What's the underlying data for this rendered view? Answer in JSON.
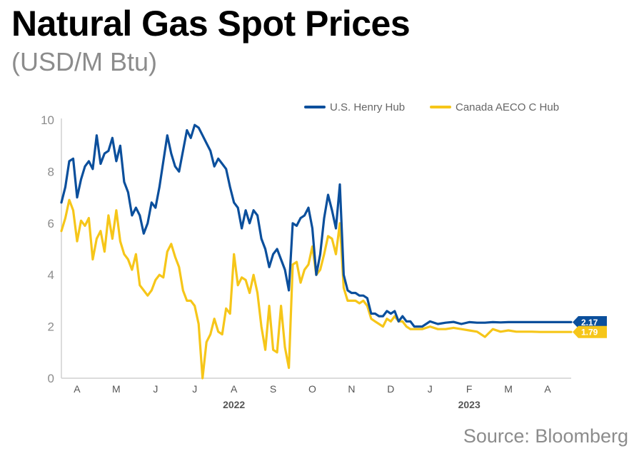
{
  "header": {
    "title": "Natural Gas Spot Prices",
    "subtitle": "(USD/M Btu)"
  },
  "footer": {
    "source": "Source: Bloomberg"
  },
  "colors": {
    "henry_hub": "#0b4f9c",
    "aeco": "#f6c619",
    "axis": "#d0d0d0"
  },
  "chart_data": {
    "type": "line",
    "title": "Natural Gas Spot Prices",
    "subtitle": "(USD/M Btu)",
    "xlabel": "",
    "ylabel": "USD/M Btu",
    "ylim": [
      0,
      10
    ],
    "yticks": [
      0,
      2,
      4,
      6,
      8,
      10
    ],
    "grid": false,
    "legend_position": "top-right",
    "x_domain": [
      0,
      13
    ],
    "x_unit": "months since 2022-03-25",
    "month_labels": [
      {
        "label": "A",
        "x": 0.4
      },
      {
        "label": "M",
        "x": 1.4
      },
      {
        "label": "J",
        "x": 2.4
      },
      {
        "label": "J",
        "x": 3.4
      },
      {
        "label": "A",
        "x": 4.4
      },
      {
        "label": "S",
        "x": 5.4
      },
      {
        "label": "O",
        "x": 6.4
      },
      {
        "label": "N",
        "x": 7.4
      },
      {
        "label": "D",
        "x": 8.4
      },
      {
        "label": "J",
        "x": 9.4
      },
      {
        "label": "F",
        "x": 10.4
      },
      {
        "label": "M",
        "x": 11.4
      },
      {
        "label": "A",
        "x": 12.4
      }
    ],
    "year_labels": [
      {
        "label": "2022",
        "x": 4.4
      },
      {
        "label": "2023",
        "x": 10.4
      }
    ],
    "series": [
      {
        "name": "U.S. Henry Hub",
        "end_label": "2.17",
        "x": [
          0,
          0.1,
          0.2,
          0.3,
          0.4,
          0.5,
          0.6,
          0.7,
          0.8,
          0.9,
          1.0,
          1.1,
          1.2,
          1.3,
          1.4,
          1.5,
          1.6,
          1.7,
          1.8,
          1.9,
          2.0,
          2.1,
          2.2,
          2.3,
          2.4,
          2.5,
          2.6,
          2.7,
          2.8,
          2.9,
          3.0,
          3.1,
          3.2,
          3.3,
          3.4,
          3.5,
          3.6,
          3.7,
          3.8,
          3.9,
          4.0,
          4.1,
          4.2,
          4.3,
          4.4,
          4.5,
          4.6,
          4.7,
          4.8,
          4.9,
          5.0,
          5.1,
          5.2,
          5.3,
          5.4,
          5.5,
          5.6,
          5.7,
          5.8,
          5.9,
          6.0,
          6.1,
          6.2,
          6.3,
          6.4,
          6.5,
          6.6,
          6.7,
          6.8,
          6.9,
          7.0,
          7.1,
          7.2,
          7.3,
          7.4,
          7.5,
          7.6,
          7.7,
          7.8,
          7.9,
          8.0,
          8.1,
          8.2,
          8.3,
          8.4,
          8.5,
          8.6,
          8.7,
          8.8,
          8.9,
          9.0,
          9.2,
          9.4,
          9.6,
          9.8,
          10.0,
          10.2,
          10.4,
          10.6,
          10.8,
          11.0,
          11.2,
          11.4,
          11.6,
          11.8,
          12.0,
          12.2,
          12.4,
          12.6,
          12.8,
          13.0
        ],
        "values": [
          6.8,
          7.4,
          8.4,
          8.5,
          7.0,
          7.7,
          8.2,
          8.4,
          8.1,
          9.4,
          8.3,
          8.7,
          8.8,
          9.3,
          8.4,
          9.0,
          7.6,
          7.2,
          6.3,
          6.6,
          6.3,
          5.6,
          6.0,
          6.8,
          6.6,
          7.4,
          8.4,
          9.4,
          8.7,
          8.2,
          8.0,
          8.8,
          9.6,
          9.3,
          9.8,
          9.7,
          9.4,
          9.1,
          8.8,
          8.2,
          8.5,
          8.3,
          8.1,
          7.4,
          6.8,
          6.6,
          5.8,
          6.5,
          6.0,
          6.5,
          6.3,
          5.4,
          5.0,
          4.3,
          4.8,
          5.0,
          4.6,
          4.2,
          3.4,
          6.0,
          5.9,
          6.2,
          6.3,
          6.6,
          5.8,
          4.0,
          4.8,
          6.2,
          7.1,
          6.5,
          5.8,
          7.5,
          4.0,
          3.4,
          3.3,
          3.3,
          3.2,
          3.2,
          3.1,
          2.5,
          2.5,
          2.4,
          2.4,
          2.6,
          2.5,
          2.6,
          2.2,
          2.4,
          2.2,
          2.2,
          2.0,
          2.0,
          2.2,
          2.1,
          2.15,
          2.18,
          2.1,
          2.17,
          2.15,
          2.15,
          2.17,
          2.16,
          2.17,
          2.17,
          2.17,
          2.17,
          2.17,
          2.17,
          2.17,
          2.17,
          2.17
        ]
      },
      {
        "name": "Canada AECO C Hub",
        "end_label": "1.79",
        "x": [
          0,
          0.1,
          0.2,
          0.3,
          0.4,
          0.5,
          0.6,
          0.7,
          0.8,
          0.9,
          1.0,
          1.1,
          1.2,
          1.3,
          1.4,
          1.5,
          1.6,
          1.7,
          1.8,
          1.9,
          2.0,
          2.1,
          2.2,
          2.3,
          2.4,
          2.5,
          2.6,
          2.7,
          2.8,
          2.9,
          3.0,
          3.1,
          3.2,
          3.3,
          3.4,
          3.5,
          3.6,
          3.7,
          3.8,
          3.9,
          4.0,
          4.1,
          4.2,
          4.3,
          4.4,
          4.5,
          4.6,
          4.7,
          4.8,
          4.9,
          5.0,
          5.1,
          5.2,
          5.3,
          5.4,
          5.5,
          5.6,
          5.7,
          5.8,
          5.9,
          6.0,
          6.1,
          6.2,
          6.3,
          6.4,
          6.5,
          6.6,
          6.7,
          6.8,
          6.9,
          7.0,
          7.1,
          7.2,
          7.3,
          7.4,
          7.5,
          7.6,
          7.7,
          7.8,
          7.9,
          8.0,
          8.1,
          8.2,
          8.3,
          8.4,
          8.5,
          8.6,
          8.7,
          8.8,
          8.9,
          9.0,
          9.2,
          9.4,
          9.6,
          9.8,
          10.0,
          10.2,
          10.4,
          10.6,
          10.8,
          11.0,
          11.2,
          11.4,
          11.6,
          11.8,
          12.0,
          12.2,
          12.4,
          12.6,
          12.8,
          13.0
        ],
        "values": [
          5.7,
          6.2,
          6.9,
          6.5,
          5.3,
          6.1,
          5.9,
          6.2,
          4.6,
          5.4,
          5.7,
          4.9,
          6.3,
          5.4,
          6.5,
          5.3,
          4.8,
          4.6,
          4.2,
          4.8,
          3.6,
          3.4,
          3.2,
          3.4,
          3.8,
          4.0,
          3.9,
          4.9,
          5.2,
          4.7,
          4.3,
          3.4,
          3.0,
          3.0,
          2.8,
          2.1,
          0.0,
          1.4,
          1.7,
          2.3,
          1.8,
          1.7,
          2.7,
          2.5,
          4.8,
          3.6,
          3.9,
          3.8,
          3.3,
          4.0,
          3.3,
          2.0,
          1.1,
          2.8,
          1.1,
          1.0,
          2.8,
          1.2,
          0.4,
          4.4,
          4.5,
          3.7,
          4.2,
          4.4,
          5.1,
          4.0,
          4.2,
          4.8,
          5.5,
          5.4,
          4.8,
          6.0,
          3.5,
          3.0,
          3.0,
          3.0,
          2.9,
          3.0,
          2.8,
          2.3,
          2.2,
          2.1,
          2.0,
          2.3,
          2.2,
          2.4,
          2.2,
          2.2,
          2.0,
          1.9,
          1.9,
          1.9,
          2.0,
          1.9,
          1.9,
          1.95,
          1.9,
          1.85,
          1.8,
          1.6,
          1.9,
          1.8,
          1.85,
          1.8,
          1.8,
          1.8,
          1.79,
          1.79,
          1.79,
          1.79,
          1.79
        ]
      }
    ]
  }
}
